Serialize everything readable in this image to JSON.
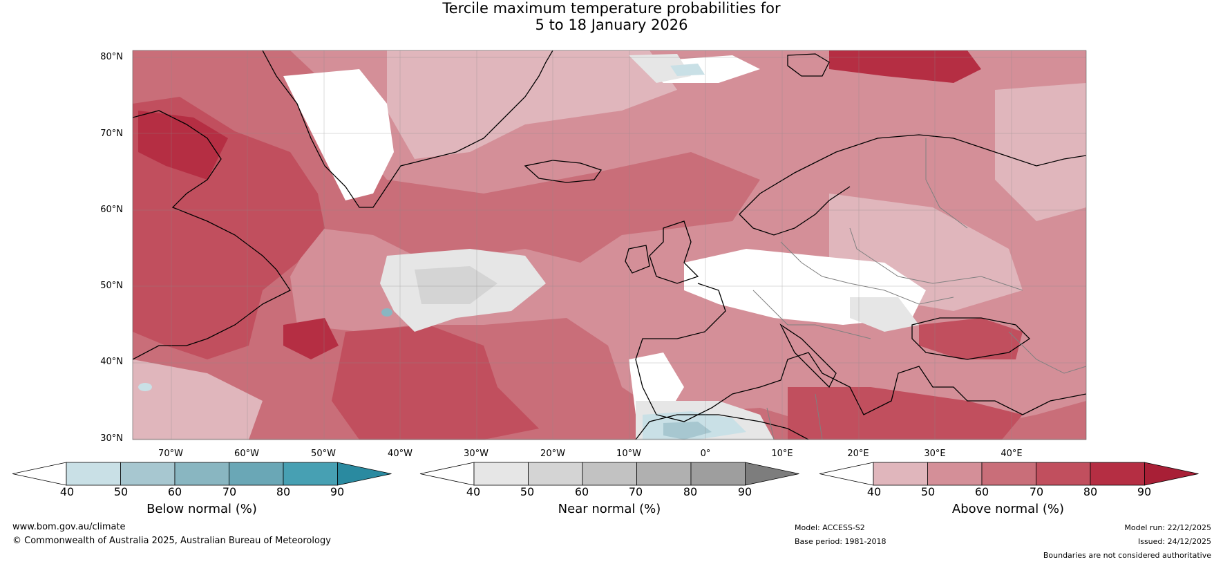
{
  "title": {
    "line1": "Tercile maximum temperature probabilities for",
    "line2": "5 to 18 January 2026"
  },
  "map": {
    "lat_labels": [
      "80°N",
      "70°N",
      "60°N",
      "50°N",
      "40°N",
      "30°N"
    ],
    "lon_labels": [
      "70°W",
      "60°W",
      "50°W",
      "40°W",
      "30°W",
      "20°W",
      "10°W",
      "0°",
      "10°E",
      "20°E",
      "30°E",
      "40°E"
    ],
    "colors": {
      "above": [
        "#e0b6bc",
        "#d48f98",
        "#c96e79",
        "#c14f5e",
        "#b52e43",
        "#a81f36"
      ],
      "near": [
        "#e6e6e6",
        "#d4d4d4",
        "#c2c2c2",
        "#b0b0b0",
        "#9e9e9e",
        "#7d7d7d"
      ],
      "below": [
        "#c9e0e6",
        "#a7c7d0",
        "#89b6c1",
        "#6aa7b6",
        "#47a0b3",
        "#2a8aa0"
      ],
      "coastline": "#000000",
      "borders": "#808080",
      "gridlines": "#888888"
    }
  },
  "colorbars": [
    {
      "name": "below",
      "label": "Below normal (%)",
      "ticks": [
        "40",
        "50",
        "60",
        "70",
        "80",
        "90"
      ]
    },
    {
      "name": "near",
      "label": "Near normal (%)",
      "ticks": [
        "40",
        "50",
        "60",
        "70",
        "80",
        "90"
      ]
    },
    {
      "name": "above",
      "label": "Above normal (%)",
      "ticks": [
        "40",
        "50",
        "60",
        "70",
        "80",
        "90"
      ]
    }
  ],
  "footer": {
    "website": "www.bom.gov.au/climate",
    "copyright": "© Commonwealth of Australia 2025, Australian Bureau of Meteorology",
    "model": "Model: ACCESS-S2",
    "base_period": "Base period: 1981-2018",
    "model_run": "Model run: 22/12/2025",
    "issued": "Issued: 24/12/2025",
    "disclaimer": "Boundaries are not considered authoritative"
  }
}
